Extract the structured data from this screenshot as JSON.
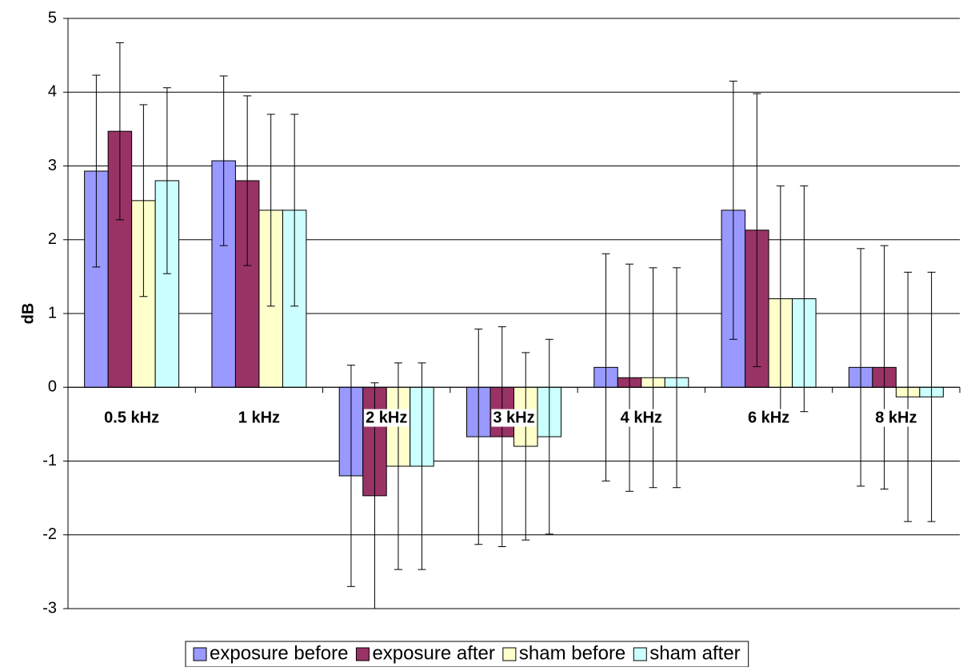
{
  "chart_data": {
    "type": "bar",
    "y_label": "dB",
    "categories": [
      "0.5 kHz",
      "1 kHz",
      "2 kHz",
      "3 kHz",
      "4 kHz",
      "6 kHz",
      "8 kHz"
    ],
    "series": [
      {
        "name": "exposure before",
        "color": "#9999ff",
        "values": [
          2.93,
          3.07,
          -1.2,
          -0.67,
          0.27,
          2.4,
          0.27
        ],
        "errors": [
          1.3,
          1.15,
          1.5,
          1.46,
          1.54,
          1.75,
          1.61
        ]
      },
      {
        "name": "exposure after",
        "color": "#993366",
        "values": [
          3.47,
          2.8,
          -1.47,
          -0.67,
          0.13,
          2.13,
          0.27
        ],
        "errors": [
          1.2,
          1.15,
          1.53,
          1.49,
          1.54,
          1.85,
          1.65
        ]
      },
      {
        "name": "sham before",
        "color": "#ffffcc",
        "values": [
          2.53,
          2.4,
          -1.07,
          -0.8,
          0.13,
          1.2,
          -0.13
        ],
        "errors": [
          1.3,
          1.3,
          1.4,
          1.27,
          1.49,
          1.53,
          1.69
        ]
      },
      {
        "name": "sham after",
        "color": "#ccffff",
        "values": [
          2.8,
          2.4,
          -1.07,
          -0.67,
          0.13,
          1.2,
          -0.13
        ],
        "errors": [
          1.26,
          1.3,
          1.4,
          1.32,
          1.49,
          1.53,
          1.69
        ]
      }
    ],
    "ylim": [
      -3,
      5
    ],
    "yticks": [
      -3,
      -2,
      -1,
      0,
      1,
      2,
      3,
      4,
      5
    ],
    "grid": true,
    "legend": "bottom"
  }
}
